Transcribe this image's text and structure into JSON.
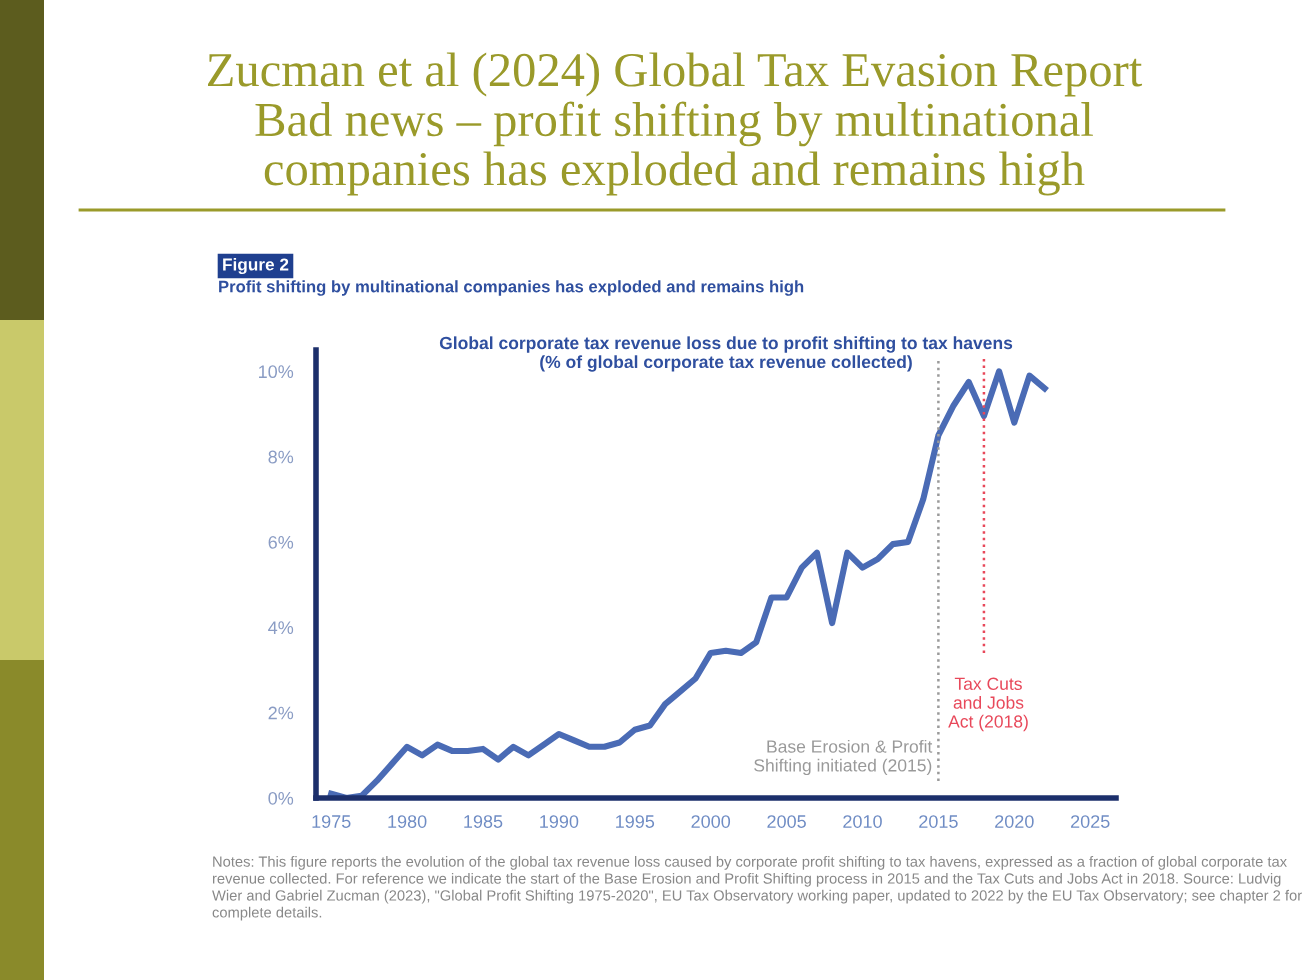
{
  "chart_data": {
    "type": "line",
    "title": "Zucman et al (2024) Global Tax Evasion Report\nBad news – profit shifting by multinational\ncompanies has exploded and remains high",
    "subtitle": "Profit shifting by multinational companies has exploded and remains high",
    "annotations": [
      "Figure 2",
      "Global corporate tax revenue loss due to profit shifting to tax havens\n(% of global corporate tax revenue collected)",
      "Notes: This figure reports the evolution of the global tax revenue loss caused by corporate profit shifting to tax havens, expressed as a fraction of global corporate tax revenue collected. For reference we indicate the start of the Base Erosion and Profit Shifting process in 2015 and the Tax Cuts and Jobs Act in 2018. Source: Ludvig Wier and Gabriel Zucman (2023), \"Global Profit Shifting 1975-2020\", EU Tax Observatory working paper, updated to 2022 by the EU Tax Observatory; see chapter 2 for complete details."
    ],
    "x": [
      1975,
      1976,
      1977,
      1978,
      1979,
      1980,
      1981,
      1982,
      1983,
      1984,
      1985,
      1986,
      1987,
      1988,
      1989,
      1990,
      1991,
      1992,
      1993,
      1994,
      1995,
      1996,
      1997,
      1998,
      1999,
      2000,
      2001,
      2002,
      2003,
      2004,
      2005,
      2006,
      2007,
      2008,
      2009,
      2010,
      2011,
      2012,
      2013,
      2014,
      2015,
      2016,
      2017,
      2018,
      2019,
      2020,
      2021,
      2022
    ],
    "series": [
      {
        "color": "#4a6bb5",
        "values": [
          0.1,
          0.0,
          0.05,
          0.4,
          0.8,
          1.2,
          1.0,
          1.25,
          1.1,
          1.1,
          1.15,
          0.9,
          1.2,
          1.0,
          1.25,
          1.5,
          1.35,
          1.2,
          1.2,
          1.3,
          1.6,
          1.7,
          2.2,
          2.5,
          2.8,
          3.4,
          3.45,
          3.4,
          3.65,
          4.7,
          4.7,
          5.4,
          5.75,
          4.1,
          5.75,
          5.4,
          5.6,
          5.95,
          6.0,
          7.0,
          8.5,
          9.2,
          9.75,
          8.95,
          10.0,
          8.8,
          9.9,
          9.6
        ]
      }
    ],
    "xlim": [
      1974,
      2026.7
    ],
    "ylim": [
      0,
      10.5
    ],
    "xticks": [
      1975,
      1980,
      1985,
      1990,
      1995,
      2000,
      2005,
      2010,
      2015,
      2020,
      2025
    ],
    "yticks": [
      {
        "value": 0,
        "label": "0%"
      },
      {
        "value": 2,
        "label": "2%"
      },
      {
        "value": 4,
        "label": "4%"
      },
      {
        "value": 6,
        "label": "6%"
      },
      {
        "value": 8,
        "label": "8%"
      },
      {
        "value": 10,
        "label": "10%"
      }
    ],
    "ref_lines": [
      {
        "axis": "x",
        "value": 2015,
        "label": "Base Erosion & Profit\nShifting initiated (2015)",
        "color": "#9a9a9a",
        "line_style": "dotted"
      },
      {
        "axis": "x",
        "value": 2018,
        "label": "Tax Cuts\nand Jobs\nAct (2018)",
        "color": "#e8485a",
        "line_style": "dotted"
      }
    ],
    "grid": false,
    "legend": false,
    "marker": "none",
    "line_style": "solid"
  }
}
